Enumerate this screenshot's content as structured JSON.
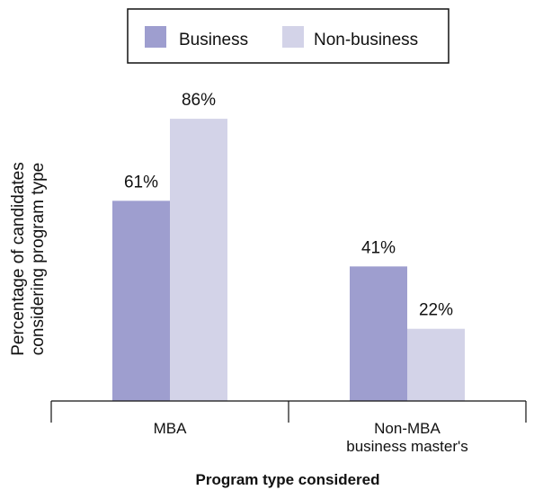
{
  "chart_data": {
    "type": "bar",
    "categories": [
      [
        "MBA"
      ],
      [
        "Non-MBA",
        "business master's"
      ]
    ],
    "series": [
      {
        "name": "Business",
        "values": [
          61,
          41
        ],
        "labels": [
          "61%",
          "41%"
        ],
        "color": "#9e9ecf"
      },
      {
        "name": "Non-business",
        "values": [
          86,
          22
        ],
        "labels": [
          "86%",
          "22%"
        ],
        "color": "#d3d3e8"
      }
    ],
    "xlabel": "Program type considered",
    "ylabel": [
      "Percentage of candidates",
      "considering program type"
    ],
    "ylim": [
      0,
      100
    ],
    "grid": false,
    "legend": "top"
  }
}
